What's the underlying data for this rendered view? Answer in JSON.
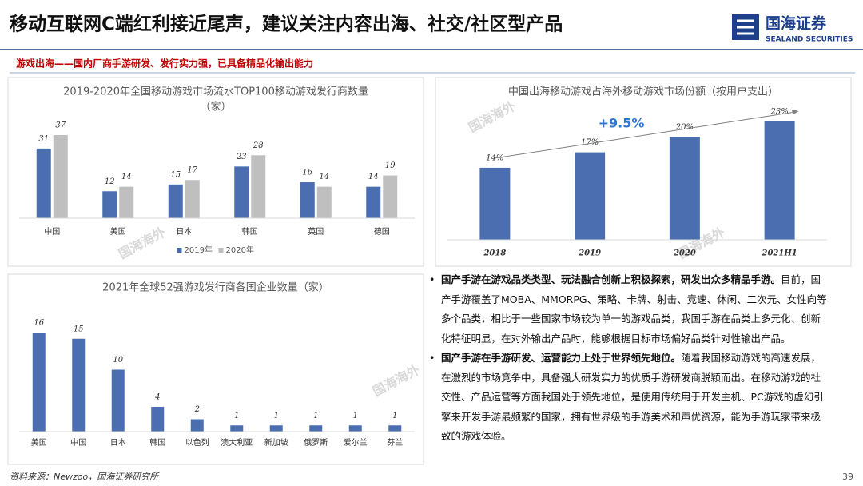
{
  "header": {
    "title": "移动互联网C端红利接近尾声，建议关注内容出海、社交/社区型产品",
    "logo_cn": "国海证券",
    "logo_en": "SEALAND SECURITIES"
  },
  "subtitle": "游戏出海——国内厂商手游研发、发行实力强，已具备精品化输出能力",
  "chart_data": [
    {
      "type": "bar",
      "title": "2019-2020年全国移动游戏市场流水TOP100移动游戏发行商数量",
      "subtitle": "（家）",
      "categories": [
        "中国",
        "美国",
        "日本",
        "韩国",
        "英国",
        "德国"
      ],
      "series": [
        {
          "name": "2019年",
          "color": "#4a6eb0",
          "values": [
            31,
            12,
            15,
            23,
            16,
            14
          ]
        },
        {
          "name": "2020年",
          "color": "#bfbfbf",
          "values": [
            37,
            14,
            17,
            28,
            14,
            19
          ]
        }
      ],
      "legend": "bottom"
    },
    {
      "type": "bar",
      "title": "中国出海移动游戏占海外移动游戏市场份额（按用户支出）",
      "categories": [
        "2018",
        "2019",
        "2020",
        "2021H1"
      ],
      "values": [
        14,
        17,
        20,
        23
      ],
      "value_labels": [
        "14%",
        "17%",
        "20%",
        "23%"
      ],
      "color": "#4a6eb0",
      "annotation": "+9.5%"
    },
    {
      "type": "bar",
      "title": "2021年全球52强游戏发行商各国企业数量（家）",
      "categories": [
        "美国",
        "中国",
        "日本",
        "韩国",
        "以色列",
        "澳大利亚",
        "新加坡",
        "俄罗斯",
        "爱尔兰",
        "芬兰"
      ],
      "values": [
        16,
        15,
        10,
        4,
        2,
        1,
        1,
        1,
        1,
        1
      ],
      "color": "#4a6eb0"
    }
  ],
  "bullets": [
    {
      "lead": "国产手游在游戏品类类型、玩法融合创新上积极探索，研发出众多精品手游。",
      "text": "目前，国产手游覆盖了MOBA、MMORPG、策略、卡牌、射击、竞速、休闲、二次元、女性向等多个品类，相比于一些国家市场较为单一的游戏品类，我国手游在品类上多元化、创新化特征明显，在对外输出产品时，能够根据目标市场偏好品类针对性输出产品。"
    },
    {
      "lead": "国产手游在手游研发、运营能力上处于世界领先地位。",
      "text": "随着我国移动游戏的高速发展，在激烈的市场竞争中，具备强大研发实力的优质手游研发商脱颖而出。在移动游戏的社交性、产品运营等方面我国处于领先地位，是使用传统用于开发主机、PC游戏的虚幻引擎来开发手游最频繁的国家，拥有世界级的手游美术和声优资源，能为手游玩家带来极致的游戏体验。"
    }
  ],
  "watermarks": [
    "国海海外",
    "国海海外",
    "国海海外",
    "国海海外"
  ],
  "footer": {
    "source": "资料来源：Newzoo，国海证券研究所",
    "page": "39"
  }
}
